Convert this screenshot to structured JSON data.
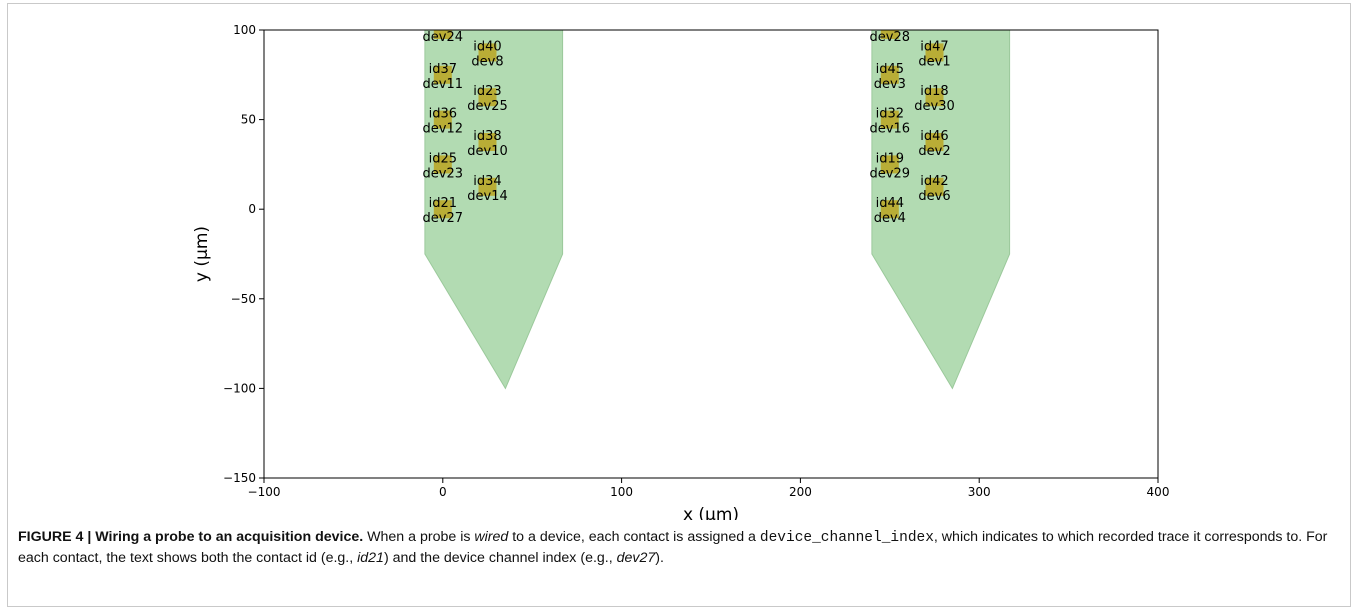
{
  "chart_data": {
    "type": "scatter",
    "xlabel": "x (μm)",
    "ylabel": "y (μm)",
    "xlim": [
      -100,
      400
    ],
    "ylim": [
      -150,
      100
    ],
    "xticks": [
      -100,
      0,
      100,
      200,
      300,
      400
    ],
    "yticks": [
      -150,
      -100,
      -50,
      0,
      50,
      100
    ],
    "grid": false,
    "colors": {
      "probe": "#b2dbb2",
      "contact": "#b9ad36"
    },
    "shanks": [
      {
        "polygon": [
          [
            -10,
            100
          ],
          [
            67,
            100
          ],
          [
            67,
            -25
          ],
          [
            35,
            -100
          ],
          [
            -10,
            -25
          ]
        ]
      },
      {
        "polygon": [
          [
            240,
            100
          ],
          [
            317,
            100
          ],
          [
            317,
            -25
          ],
          [
            285,
            -100
          ],
          [
            240,
            -25
          ]
        ]
      }
    ],
    "contacts": [
      {
        "x": 0,
        "y": 100,
        "id": "",
        "dev": "dev24"
      },
      {
        "x": 0,
        "y": 75,
        "id": "id37",
        "dev": "dev11"
      },
      {
        "x": 0,
        "y": 50,
        "id": "id36",
        "dev": "dev12"
      },
      {
        "x": 0,
        "y": 25,
        "id": "id25",
        "dev": "dev23"
      },
      {
        "x": 0,
        "y": 0,
        "id": "id21",
        "dev": "dev27"
      },
      {
        "x": 25,
        "y": 87.5,
        "id": "id40",
        "dev": "dev8"
      },
      {
        "x": 25,
        "y": 62.5,
        "id": "id23",
        "dev": "dev25"
      },
      {
        "x": 25,
        "y": 37.5,
        "id": "id38",
        "dev": "dev10"
      },
      {
        "x": 25,
        "y": 12.5,
        "id": "id34",
        "dev": "dev14"
      },
      {
        "x": 250,
        "y": 100,
        "id": "",
        "dev": "dev28"
      },
      {
        "x": 250,
        "y": 75,
        "id": "id45",
        "dev": "dev3"
      },
      {
        "x": 250,
        "y": 50,
        "id": "id32",
        "dev": "dev16"
      },
      {
        "x": 250,
        "y": 25,
        "id": "id19",
        "dev": "dev29"
      },
      {
        "x": 250,
        "y": 0,
        "id": "id44",
        "dev": "dev4"
      },
      {
        "x": 275,
        "y": 87.5,
        "id": "id47",
        "dev": "dev1"
      },
      {
        "x": 275,
        "y": 62.5,
        "id": "id18",
        "dev": "dev30"
      },
      {
        "x": 275,
        "y": 37.5,
        "id": "id46",
        "dev": "dev2"
      },
      {
        "x": 275,
        "y": 12.5,
        "id": "id42",
        "dev": "dev6"
      }
    ]
  },
  "caption": {
    "label": "FIGURE 4 | Wiring a probe to an acquisition device.",
    "t1": " When a probe is ",
    "i1": "wired",
    "t2": " to a device, each contact is assigned a ",
    "code": "device_channel_index",
    "t3": ", which indicates to which recorded trace it corresponds to. For each contact, the text shows both the contact id (e.g., ",
    "i2": "id21",
    "t4": ") and the device channel index (e.g., ",
    "i3": "dev27",
    "t5": ")."
  }
}
